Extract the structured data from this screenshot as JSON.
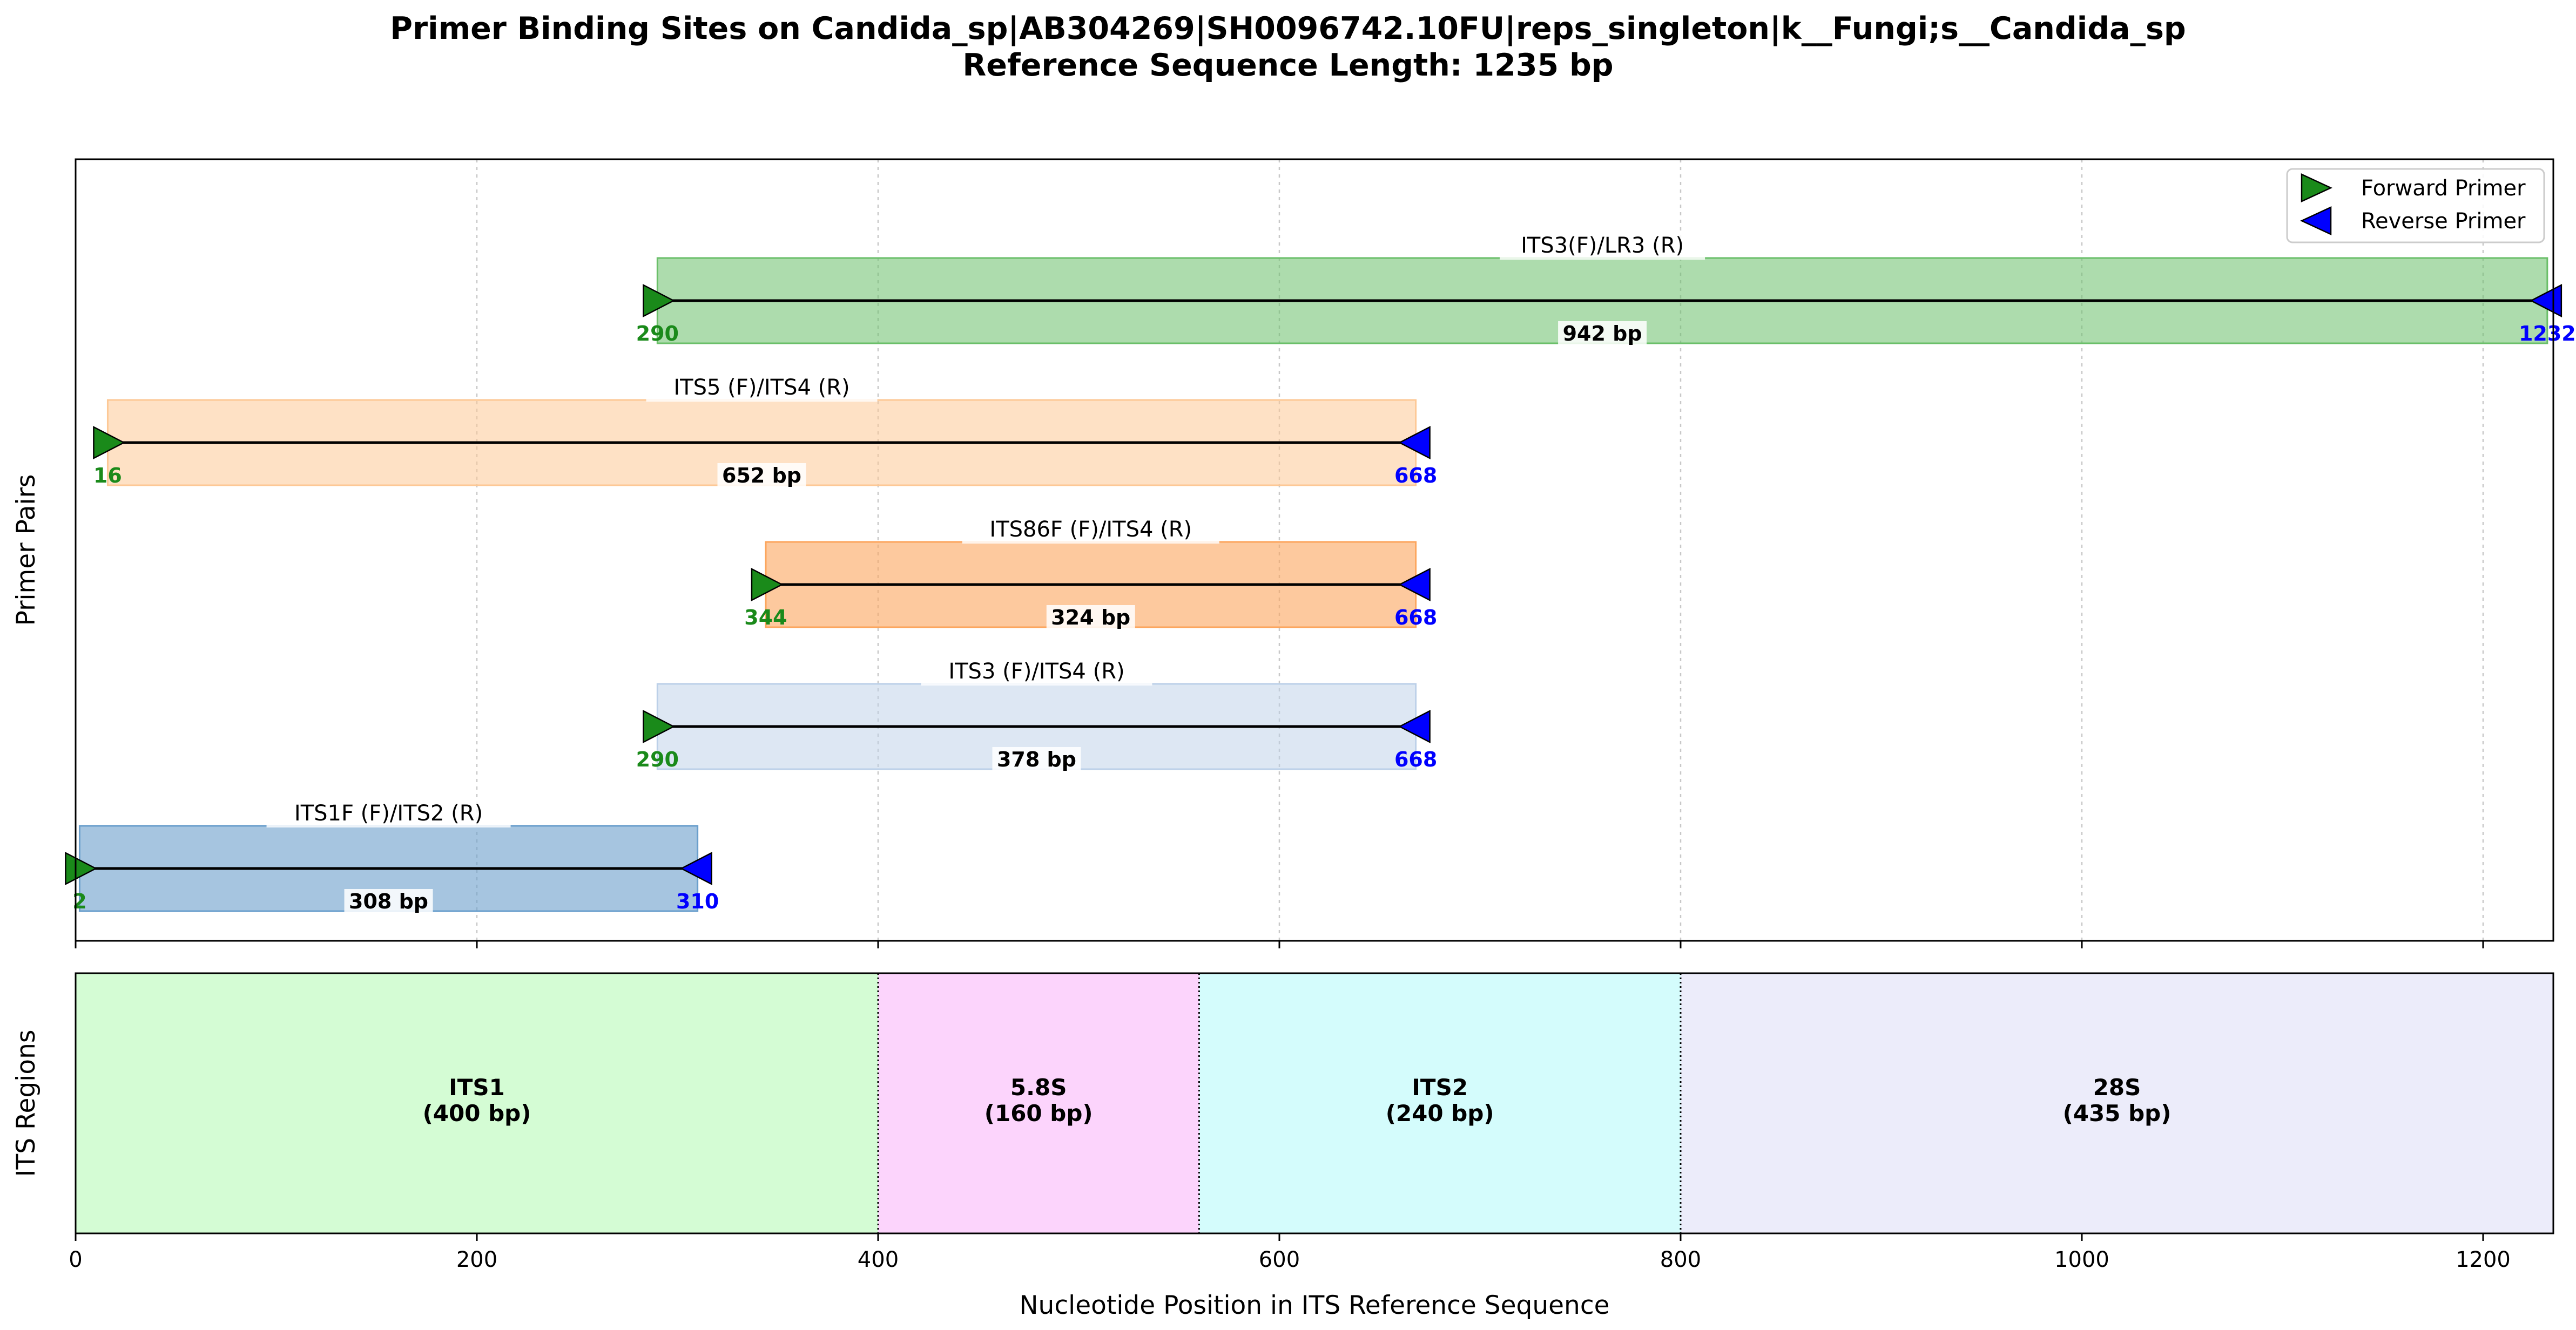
{
  "chart_data": [
    {
      "type": "gantt",
      "title_line1": "Primer Binding Sites on Candida_sp|AB304269|SH0096742.10FU|reps_singleton|k__Fungi;s__Candida_sp",
      "title_line2": "Reference Sequence Length: 1235 bp",
      "ylabel": "Primer Pairs",
      "xlim": [
        0,
        1235
      ],
      "x_ticks": [
        0,
        200,
        400,
        600,
        800,
        1000,
        1200
      ],
      "grid": true,
      "legend": {
        "placement": "top-right",
        "forward_label": "Forward Primer",
        "reverse_label": "Reverse Primer",
        "forward_color": "#1a8a1a",
        "reverse_color": "#0000ff"
      },
      "series": [
        {
          "name": "ITS3(F)/LR3 (R)",
          "start": 290,
          "end": 1232,
          "length_label": "942 bp",
          "color": "#6abf69",
          "alpha": 0.55
        },
        {
          "name": "ITS5 (F)/ITS4 (R)",
          "start": 16,
          "end": 668,
          "length_label": "652 bp",
          "color": "#fdc895",
          "alpha": 0.55
        },
        {
          "name": "ITS86F (F)/ITS4 (R)",
          "start": 344,
          "end": 668,
          "length_label": "324 bp",
          "color": "#fca55d",
          "alpha": 0.6
        },
        {
          "name": "ITS3 (F)/ITS4 (R)",
          "start": 290,
          "end": 668,
          "length_label": "378 bp",
          "color": "#bcd0e8",
          "alpha": 0.5
        },
        {
          "name": "ITS1F (F)/ITS2 (R)",
          "start": 2,
          "end": 310,
          "length_label": "308 bp",
          "color": "#6a9fcc",
          "alpha": 0.6
        }
      ]
    },
    {
      "type": "bar",
      "ylabel": "ITS Regions",
      "xlabel": "Nucleotide Position in ITS Reference Sequence",
      "xlim": [
        0,
        1235
      ],
      "x_ticks": [
        0,
        200,
        400,
        600,
        800,
        1000,
        1200
      ],
      "regions": [
        {
          "name": "ITS1",
          "length_label": "(400 bp)",
          "start": 0,
          "end": 400,
          "color": "#d4fcd4"
        },
        {
          "name": "5.8S",
          "length_label": "(160 bp)",
          "start": 400,
          "end": 560,
          "color": "#fcd4fc"
        },
        {
          "name": "ITS2",
          "length_label": "(240 bp)",
          "start": 560,
          "end": 800,
          "color": "#d4fcfc"
        },
        {
          "name": "28S",
          "length_label": "(435 bp)",
          "start": 800,
          "end": 1235,
          "color": "#ececfa"
        }
      ]
    }
  ]
}
